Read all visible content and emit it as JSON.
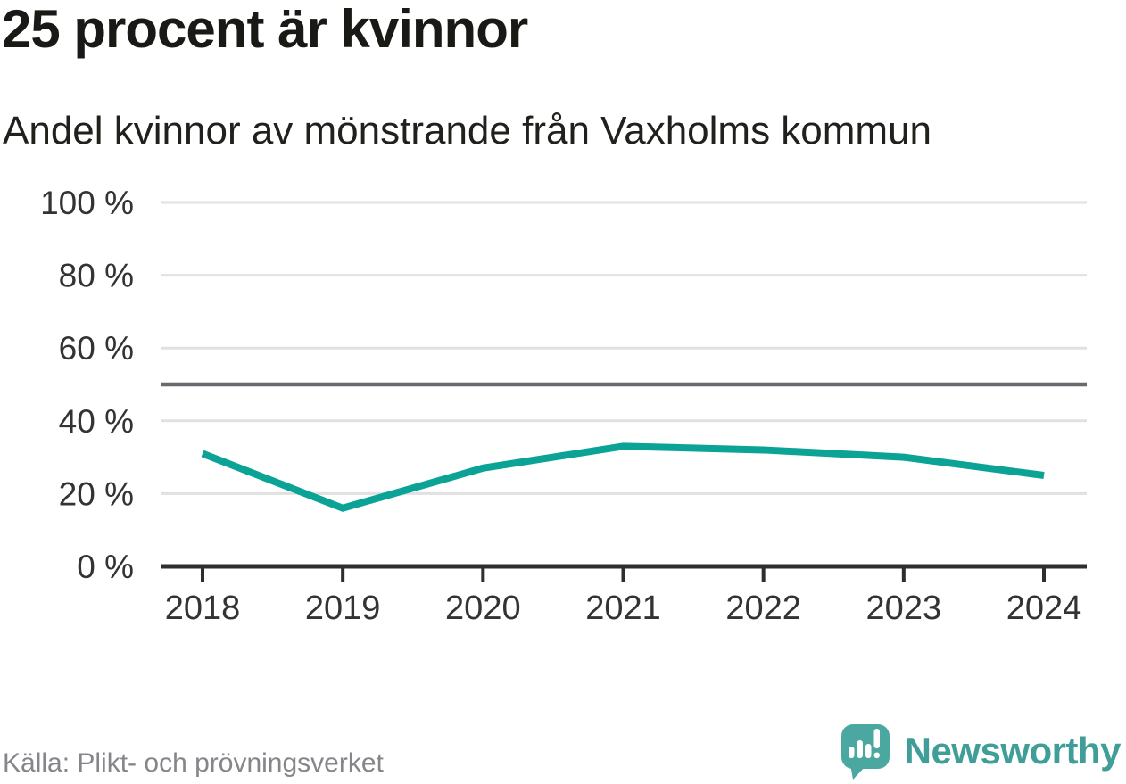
{
  "header": {
    "title": "25 procent är kvinnor",
    "subtitle": "Andel kvinnor av mönstrande från Vaxholms kommun"
  },
  "footer": {
    "source": "Källa: Plikt- och prövningsverket",
    "brand": "Newsworthy"
  },
  "colors": {
    "line": "#0aa396",
    "grid": "#e1e1e1",
    "reference_line": "#696970",
    "axis": "#2e2e2e",
    "tick_label": "#333333",
    "title_text": "#191916",
    "source_text": "#85858a",
    "brand_bubble": "#4aa8a1",
    "brand_text": "#3f9e98"
  },
  "chart_data": {
    "type": "line",
    "x": [
      2018,
      2019,
      2020,
      2021,
      2022,
      2023,
      2024
    ],
    "values": [
      31,
      16,
      27,
      33,
      32,
      30,
      25
    ],
    "series_name": "Andel kvinnor av mönstrande",
    "unit": "%",
    "title": "25 procent är kvinnor",
    "subtitle": "Andel kvinnor av mönstrande från Vaxholms kommun",
    "ylim": [
      0,
      100
    ],
    "yticks": [
      0,
      20,
      40,
      60,
      80,
      100
    ],
    "ytick_suffix": " %",
    "reference_line": 50,
    "grid": "horizontal",
    "legend": "none",
    "source": "Källa: Plikt- och prövningsverket"
  }
}
